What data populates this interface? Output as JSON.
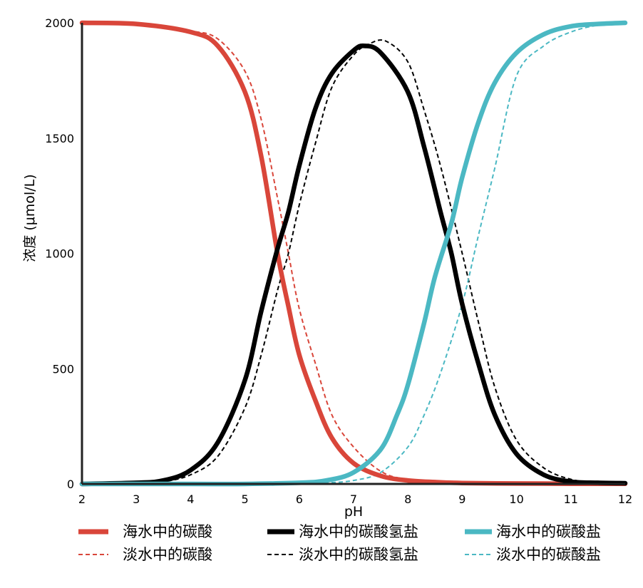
{
  "chart_data": {
    "type": "line",
    "title": "",
    "xlabel": "pH",
    "ylabel": "浓度 (μmol/L)",
    "xlim": [
      2,
      12
    ],
    "ylim": [
      0,
      2000
    ],
    "x_ticks": [
      "2",
      "3",
      "4",
      "5",
      "6",
      "7",
      "8",
      "9",
      "10",
      "11",
      "12"
    ],
    "y_ticks": [
      "0",
      "500",
      "1000",
      "1500",
      "2000"
    ],
    "grid": false,
    "legend_position": "bottom",
    "series": [
      {
        "name": "海水中的碳酸",
        "color": "#d9463a",
        "style": "solid",
        "x": [
          2,
          3,
          4,
          4.5,
          5,
          5.3,
          5.6,
          5.8,
          6,
          6.3,
          6.6,
          7,
          7.5,
          8,
          8.5,
          9,
          10,
          11,
          12
        ],
        "y": [
          2000,
          1995,
          1960,
          1900,
          1700,
          1420,
          1000,
          770,
          560,
          360,
          200,
          90,
          35,
          15,
          8,
          4,
          2,
          1,
          1
        ]
      },
      {
        "name": "淡水中的碳酸",
        "color": "#d9463a",
        "style": "dashed",
        "x": [
          2,
          3,
          4,
          4.5,
          5,
          5.3,
          5.6,
          5.8,
          6,
          6.3,
          6.6,
          7,
          7.5,
          8,
          9,
          10,
          11,
          12
        ],
        "y": [
          2000,
          1995,
          1965,
          1930,
          1790,
          1580,
          1240,
          1000,
          760,
          520,
          300,
          160,
          55,
          20,
          5,
          2,
          1,
          1
        ]
      },
      {
        "name": "海水中的碳酸氢盐",
        "color": "#000000",
        "style": "solid",
        "x": [
          2,
          3,
          3.5,
          4,
          4.5,
          5,
          5.3,
          5.6,
          5.8,
          6,
          6.3,
          6.6,
          7,
          7.2,
          7.5,
          8,
          8.3,
          8.6,
          8.8,
          9,
          9.3,
          9.6,
          10,
          10.5,
          11,
          11.5,
          12
        ],
        "y": [
          0,
          5,
          15,
          60,
          180,
          450,
          750,
          1020,
          1180,
          1380,
          1630,
          1780,
          1880,
          1900,
          1870,
          1700,
          1460,
          1180,
          1000,
          780,
          520,
          300,
          130,
          40,
          10,
          5,
          3
        ]
      },
      {
        "name": "淡水中的碳酸氢盐",
        "color": "#000000",
        "style": "dashed",
        "x": [
          2,
          3,
          3.5,
          4,
          4.5,
          5,
          5.3,
          5.6,
          5.8,
          6,
          6.3,
          6.6,
          7,
          7.3,
          7.6,
          8,
          8.3,
          8.6,
          9,
          9.3,
          9.6,
          10,
          10.5,
          11,
          11.5,
          12
        ],
        "y": [
          0,
          3,
          10,
          40,
          120,
          330,
          560,
          840,
          1000,
          1210,
          1480,
          1720,
          1860,
          1910,
          1920,
          1830,
          1620,
          1380,
          1000,
          700,
          420,
          190,
          70,
          20,
          6,
          3
        ]
      },
      {
        "name": "海水中的碳酸盐",
        "color": "#4bb8c3",
        "style": "solid",
        "x": [
          2,
          4,
          5,
          6,
          6.5,
          7,
          7.5,
          7.8,
          8,
          8.3,
          8.5,
          8.8,
          9,
          9.3,
          9.6,
          10,
          10.5,
          11,
          11.5,
          12
        ],
        "y": [
          0,
          0,
          0,
          5,
          15,
          50,
          150,
          300,
          430,
          700,
          900,
          1130,
          1330,
          1570,
          1740,
          1870,
          1950,
          1985,
          1995,
          2000
        ]
      },
      {
        "name": "淡水中的碳酸盐",
        "color": "#4bb8c3",
        "style": "dashed",
        "x": [
          2,
          4,
          5,
          6,
          6.5,
          7,
          7.5,
          8,
          8.3,
          8.6,
          9,
          9.3,
          9.6,
          10,
          10.5,
          11,
          11.5,
          12
        ],
        "y": [
          0,
          0,
          0,
          2,
          5,
          15,
          50,
          160,
          300,
          480,
          780,
          1080,
          1370,
          1770,
          1900,
          1960,
          1990,
          2000
        ]
      }
    ]
  }
}
